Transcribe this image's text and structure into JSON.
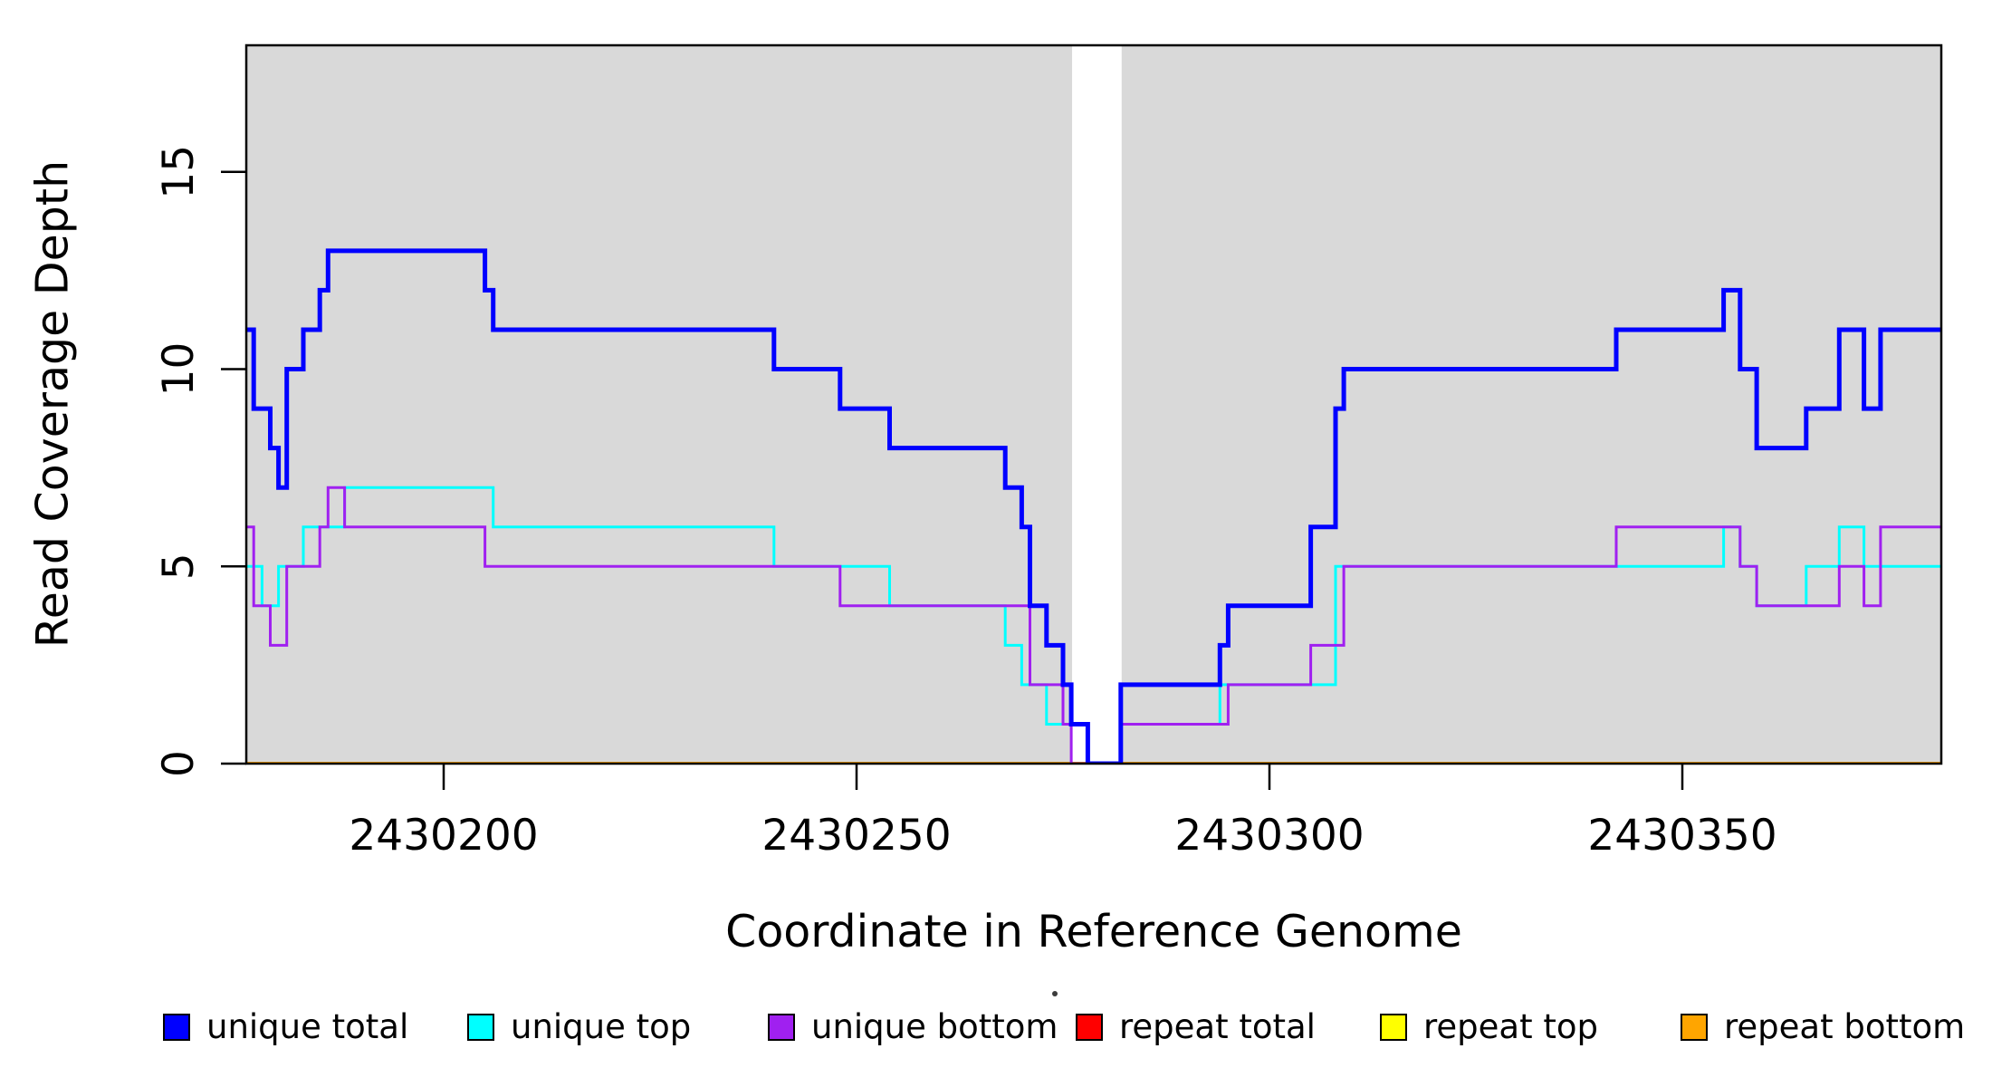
{
  "chart_data": {
    "type": "line",
    "subtype": "step-coverage",
    "title": "",
    "xlabel": "Coordinate in Reference Genome",
    "ylabel": "Read Coverage Depth",
    "xlim": [
      2430176,
      2430382
    ],
    "ylim": [
      0,
      18.2
    ],
    "x_ticks": [
      2430200,
      2430250,
      2430300,
      2430350
    ],
    "x_tick_labels": [
      "2430200",
      "2430250",
      "2430300",
      "2430350"
    ],
    "y_ticks": [
      0,
      5,
      10,
      15
    ],
    "y_tick_labels": [
      "0",
      "5",
      "10",
      "15"
    ],
    "grid": "off",
    "plot_background": "#d9d9d9",
    "page_background": "#ffffff",
    "box_color": "#000000",
    "no_data_region": [
      2430276.1,
      2430282.1
    ],
    "x_end": 2430381.5,
    "legend_position": "bottom",
    "series": [
      {
        "name": "unique total",
        "color": "#0000ff",
        "line_width": 5,
        "steps": [
          [
            2430176,
            11
          ],
          [
            2430177,
            9
          ],
          [
            2430179,
            8
          ],
          [
            2430180,
            7
          ],
          [
            2430181,
            10
          ],
          [
            2430183,
            11
          ],
          [
            2430185,
            12
          ],
          [
            2430186,
            13
          ],
          [
            2430205,
            12
          ],
          [
            2430206,
            11
          ],
          [
            2430240,
            10
          ],
          [
            2430248,
            9
          ],
          [
            2430254,
            8
          ],
          [
            2430268,
            7
          ],
          [
            2430270,
            6
          ],
          [
            2430271,
            4
          ],
          [
            2430273,
            3
          ],
          [
            2430275,
            2
          ],
          [
            2430276,
            1
          ],
          [
            2430278,
            0
          ],
          [
            2430282,
            2
          ],
          [
            2430294,
            3
          ],
          [
            2430295,
            4
          ],
          [
            2430305,
            6
          ],
          [
            2430308,
            9
          ],
          [
            2430309,
            10
          ],
          [
            2430342,
            11
          ],
          [
            2430355,
            12
          ],
          [
            2430357,
            10
          ],
          [
            2430359,
            8
          ],
          [
            2430365,
            9
          ],
          [
            2430369,
            11
          ],
          [
            2430372,
            9
          ],
          [
            2430374,
            11
          ]
        ]
      },
      {
        "name": "unique top",
        "color": "#00ffff",
        "line_width": 3,
        "steps": [
          [
            2430176,
            5
          ],
          [
            2430178,
            4
          ],
          [
            2430180,
            5
          ],
          [
            2430183,
            6
          ],
          [
            2430188,
            7
          ],
          [
            2430206,
            6
          ],
          [
            2430240,
            5
          ],
          [
            2430254,
            4
          ],
          [
            2430268,
            3
          ],
          [
            2430270,
            2
          ],
          [
            2430273,
            1
          ],
          [
            2430278,
            0
          ],
          [
            2430282,
            1
          ],
          [
            2430294,
            2
          ],
          [
            2430308,
            5
          ],
          [
            2430355,
            6
          ],
          [
            2430357,
            5
          ],
          [
            2430359,
            4
          ],
          [
            2430365,
            5
          ],
          [
            2430369,
            6
          ],
          [
            2430372,
            5
          ]
        ]
      },
      {
        "name": "unique bottom",
        "color": "#a020f0",
        "line_width": 3,
        "steps": [
          [
            2430176,
            6
          ],
          [
            2430177,
            4
          ],
          [
            2430179,
            3
          ],
          [
            2430181,
            5
          ],
          [
            2430185,
            6
          ],
          [
            2430186,
            7
          ],
          [
            2430188,
            6
          ],
          [
            2430205,
            5
          ],
          [
            2430248,
            4
          ],
          [
            2430271,
            2
          ],
          [
            2430275,
            1
          ],
          [
            2430276,
            0
          ],
          [
            2430282,
            1
          ],
          [
            2430295,
            2
          ],
          [
            2430305,
            3
          ],
          [
            2430309,
            5
          ],
          [
            2430342,
            6
          ],
          [
            2430357,
            5
          ],
          [
            2430359,
            4
          ],
          [
            2430369,
            5
          ],
          [
            2430372,
            4
          ],
          [
            2430374,
            6
          ]
        ]
      },
      {
        "name": "repeat total",
        "color": "#ff0000",
        "line_width": 3,
        "steps": [
          [
            2430176,
            0
          ]
        ]
      },
      {
        "name": "repeat top",
        "color": "#ffff00",
        "line_width": 3,
        "steps": [
          [
            2430176,
            0
          ]
        ]
      },
      {
        "name": "repeat bottom",
        "color": "#ffa500",
        "line_width": 4,
        "steps": [
          [
            2430176,
            0
          ]
        ]
      }
    ]
  }
}
